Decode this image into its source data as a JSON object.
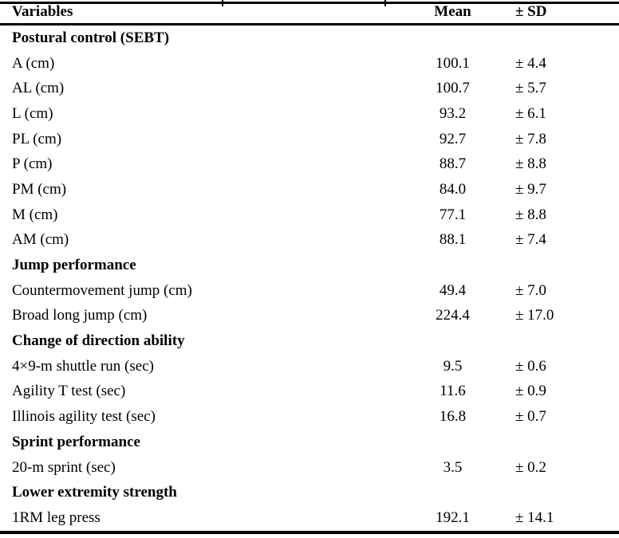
{
  "page": {
    "background": "#ffffff",
    "text_color": "#000000",
    "rule_color": "#000000"
  },
  "table": {
    "columns": {
      "variables": "Variables",
      "mean": "Mean",
      "sd": "± SD"
    },
    "rows": [
      {
        "type": "section",
        "label": "Postural control (SEBT)",
        "mean": "",
        "sd": ""
      },
      {
        "type": "data",
        "label": "A (cm)",
        "mean": "100.1",
        "sd": "± 4.4"
      },
      {
        "type": "data",
        "label": "AL (cm)",
        "mean": "100.7",
        "sd": "± 5.7"
      },
      {
        "type": "data",
        "label": "L (cm)",
        "mean": "93.2",
        "sd": "± 6.1"
      },
      {
        "type": "data",
        "label": "PL (cm)",
        "mean": "92.7",
        "sd": "± 7.8"
      },
      {
        "type": "data",
        "label": "P (cm)",
        "mean": "88.7",
        "sd": "± 8.8"
      },
      {
        "type": "data",
        "label": "PM (cm)",
        "mean": "84.0",
        "sd": "± 9.7"
      },
      {
        "type": "data",
        "label": "M (cm)",
        "mean": "77.1",
        "sd": "± 8.8"
      },
      {
        "type": "data",
        "label": "AM (cm)",
        "mean": "88.1",
        "sd": "± 7.4"
      },
      {
        "type": "section",
        "label": "Jump performance",
        "mean": "",
        "sd": ""
      },
      {
        "type": "data",
        "label": "Countermovement jump (cm)",
        "mean": "49.4",
        "sd": "± 7.0"
      },
      {
        "type": "data",
        "label": "Broad long jump (cm)",
        "mean": "224.4",
        "sd": "± 17.0"
      },
      {
        "type": "section",
        "label": "Change of direction ability",
        "mean": "",
        "sd": ""
      },
      {
        "type": "data",
        "label": "4×9-m shuttle run (sec)",
        "mean": "9.5",
        "sd": "± 0.6"
      },
      {
        "type": "data",
        "label": "Agility T test (sec)",
        "mean": "11.6",
        "sd": "± 0.9"
      },
      {
        "type": "data",
        "label": "Illinois agility test (sec)",
        "mean": "16.8",
        "sd": "± 0.7"
      },
      {
        "type": "section",
        "label": "Sprint performance",
        "mean": "",
        "sd": ""
      },
      {
        "type": "data",
        "label": "20-m sprint (sec)",
        "mean": "3.5",
        "sd": "± 0.2"
      },
      {
        "type": "section",
        "label": "Lower extremity strength",
        "mean": "",
        "sd": ""
      },
      {
        "type": "data",
        "label": "1RM leg press",
        "mean": "192.1",
        "sd": "± 14.1"
      }
    ]
  }
}
